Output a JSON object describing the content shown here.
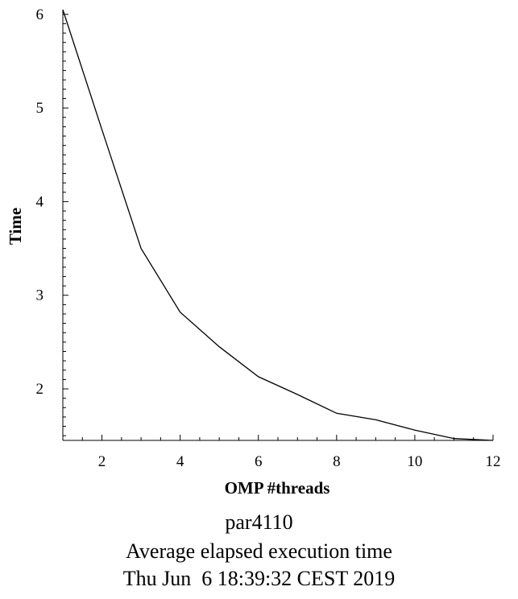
{
  "chart_data": {
    "type": "line",
    "xlabel": "OMP #threads",
    "ylabel": "Time",
    "xlim": [
      1,
      12
    ],
    "ylim": [
      1.45,
      6.05
    ],
    "xticks": [
      2,
      4,
      6,
      8,
      10,
      12
    ],
    "yticks": [
      2,
      3,
      4,
      5,
      6
    ],
    "grid": false,
    "series": [
      {
        "x": [
          1,
          2,
          3,
          4,
          5,
          6,
          7,
          8,
          9,
          10,
          11,
          12
        ],
        "y": [
          6.05,
          4.77,
          3.5,
          2.82,
          2.45,
          2.13,
          1.94,
          1.74,
          1.67,
          1.56,
          1.47,
          1.45
        ]
      }
    ],
    "caption": [
      "par4110",
      "Average elapsed execution time",
      "Thu Jun  6 18:39:32 CEST 2019"
    ]
  }
}
